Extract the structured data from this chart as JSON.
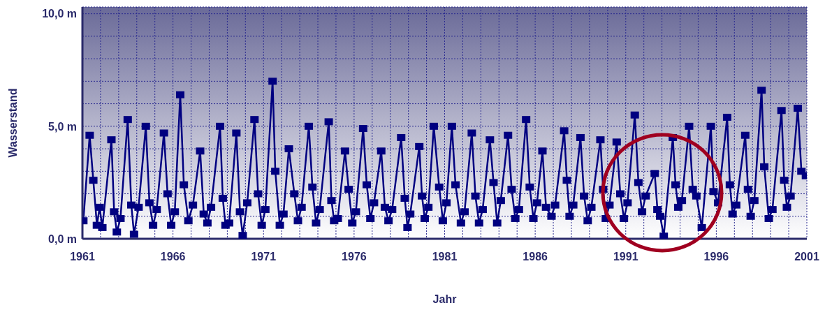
{
  "chart_data": {
    "type": "line",
    "xlabel": "Jahr",
    "ylabel": "Wasserstand",
    "marker": "square",
    "grid": true,
    "xlim": [
      1961,
      2001
    ],
    "ylim": [
      0,
      10.3
    ],
    "xticks": [
      1961,
      {
        "value": 1962,
        "label": null
      },
      {
        "value": 1963,
        "label": null
      },
      {
        "value": 1964,
        "label": null
      },
      {
        "value": 1965,
        "label": null
      },
      1966,
      {
        "value": 1967,
        "label": null
      },
      {
        "value": 1968,
        "label": null
      },
      {
        "value": 1969,
        "label": null
      },
      {
        "value": 1970,
        "label": null
      },
      1971,
      {
        "value": 1972,
        "label": null
      },
      {
        "value": 1973,
        "label": null
      },
      {
        "value": 1974,
        "label": null
      },
      {
        "value": 1975,
        "label": null
      },
      1976,
      {
        "value": 1977,
        "label": null
      },
      {
        "value": 1978,
        "label": null
      },
      {
        "value": 1979,
        "label": null
      },
      {
        "value": 1980,
        "label": null
      },
      1981,
      {
        "value": 1982,
        "label": null
      },
      {
        "value": 1983,
        "label": null
      },
      {
        "value": 1984,
        "label": null
      },
      {
        "value": 1985,
        "label": null
      },
      1986,
      {
        "value": 1987,
        "label": null
      },
      {
        "value": 1988,
        "label": null
      },
      {
        "value": 1989,
        "label": null
      },
      {
        "value": 1990,
        "label": null
      },
      1991,
      {
        "value": 1992,
        "label": null
      },
      {
        "value": 1993,
        "label": null
      },
      {
        "value": 1994,
        "label": null
      },
      {
        "value": 1995,
        "label": null
      },
      1996,
      {
        "value": 1997,
        "label": null
      },
      {
        "value": 1998,
        "label": null
      },
      {
        "value": 1999,
        "label": null
      },
      {
        "value": 2000,
        "label": null
      },
      2001
    ],
    "yticks": [
      {
        "value": 0,
        "label": "0,0 m"
      },
      {
        "value": 1,
        "label": null
      },
      {
        "value": 2,
        "label": null
      },
      {
        "value": 3,
        "label": null
      },
      {
        "value": 4,
        "label": null
      },
      {
        "value": 5,
        "label": "5,0 m"
      },
      {
        "value": 6,
        "label": null
      },
      {
        "value": 7,
        "label": null
      },
      {
        "value": 8,
        "label": null
      },
      {
        "value": 9,
        "label": null
      },
      {
        "value": 10,
        "label": "10,0 m"
      }
    ],
    "series": [
      {
        "color": "#000080",
        "x": [
          1961.05,
          1961.4,
          1961.6,
          1961.8,
          1961.95,
          1962.1,
          1962.6,
          1962.75,
          1962.9,
          1963.1,
          1963.5,
          1963.7,
          1963.85,
          1964.1,
          1964.5,
          1964.7,
          1964.9,
          1965.1,
          1965.5,
          1965.7,
          1965.9,
          1966.1,
          1966.4,
          1966.6,
          1966.85,
          1967.1,
          1967.5,
          1967.7,
          1967.9,
          1968.1,
          1968.6,
          1968.75,
          1968.9,
          1969.1,
          1969.5,
          1969.7,
          1969.85,
          1970.1,
          1970.5,
          1970.7,
          1970.9,
          1971.1,
          1971.5,
          1971.65,
          1971.9,
          1972.1,
          1972.4,
          1972.7,
          1972.9,
          1973.1,
          1973.5,
          1973.7,
          1973.9,
          1974.1,
          1974.6,
          1974.75,
          1974.9,
          1975.1,
          1975.5,
          1975.7,
          1975.9,
          1976.1,
          1976.5,
          1976.7,
          1976.9,
          1977.1,
          1977.5,
          1977.7,
          1977.9,
          1978.1,
          1978.6,
          1978.8,
          1978.95,
          1979.1,
          1979.6,
          1979.75,
          1979.9,
          1980.1,
          1980.4,
          1980.7,
          1980.9,
          1981.1,
          1981.4,
          1981.6,
          1981.9,
          1982.1,
          1982.5,
          1982.7,
          1982.9,
          1983.1,
          1983.5,
          1983.7,
          1983.9,
          1984.1,
          1984.5,
          1984.7,
          1984.9,
          1985.1,
          1985.5,
          1985.7,
          1985.9,
          1986.1,
          1986.4,
          1986.6,
          1986.9,
          1987.1,
          1987.6,
          1987.75,
          1987.9,
          1988.1,
          1988.5,
          1988.7,
          1988.9,
          1989.1,
          1989.6,
          1989.75,
          1989.9,
          1990.1,
          1990.5,
          1990.7,
          1990.9,
          1991.1,
          1991.5,
          1991.7,
          1991.9,
          1992.1,
          1992.6,
          1992.75,
          1992.9,
          1993.1,
          1993.6,
          1993.75,
          1993.9,
          1994.1,
          1994.5,
          1994.7,
          1994.9,
          1995.2,
          1995.7,
          1995.85,
          1996.1,
          1996.6,
          1996.75,
          1996.9,
          1997.1,
          1997.6,
          1997.75,
          1997.9,
          1998.1,
          1998.5,
          1998.65,
          1998.9,
          1999.1,
          1999.6,
          1999.75,
          1999.9,
          2000.1,
          2000.5,
          2000.7,
          2000.95
        ],
        "values": [
          0.8,
          4.6,
          2.6,
          0.6,
          1.4,
          0.5,
          4.4,
          1.2,
          0.3,
          0.9,
          5.3,
          1.5,
          0.2,
          1.4,
          5.0,
          1.6,
          0.6,
          1.3,
          4.7,
          2.0,
          0.6,
          1.2,
          6.4,
          2.4,
          0.8,
          1.5,
          3.9,
          1.1,
          0.7,
          1.4,
          5.0,
          1.8,
          0.6,
          0.7,
          4.7,
          1.2,
          0.15,
          1.6,
          5.3,
          2.0,
          0.6,
          1.3,
          7.0,
          3.0,
          0.6,
          1.1,
          4.0,
          2.0,
          0.8,
          1.4,
          5.0,
          2.3,
          0.7,
          1.3,
          5.2,
          1.7,
          0.8,
          0.9,
          3.9,
          2.2,
          0.7,
          1.2,
          4.9,
          2.4,
          0.9,
          1.6,
          3.9,
          1.4,
          0.8,
          1.3,
          4.5,
          1.8,
          0.5,
          1.1,
          4.1,
          1.9,
          0.9,
          1.4,
          5.0,
          2.3,
          0.8,
          1.6,
          5.0,
          2.4,
          0.7,
          1.2,
          4.7,
          1.9,
          0.7,
          1.3,
          4.4,
          2.5,
          0.7,
          1.7,
          4.6,
          2.2,
          0.9,
          1.3,
          5.3,
          2.3,
          0.9,
          1.6,
          3.9,
          1.4,
          1.0,
          1.5,
          4.8,
          2.6,
          1.0,
          1.5,
          4.5,
          1.9,
          0.8,
          1.4,
          4.4,
          2.2,
          0.9,
          1.5,
          4.3,
          2.0,
          0.9,
          1.6,
          5.5,
          2.5,
          1.2,
          1.9,
          2.9,
          1.3,
          1.0,
          0.12,
          4.5,
          2.4,
          1.4,
          1.7,
          5.0,
          2.2,
          1.9,
          0.5,
          5.0,
          2.1,
          1.6,
          5.4,
          2.4,
          1.1,
          1.5,
          4.6,
          2.2,
          1.0,
          1.7,
          6.6,
          3.2,
          0.9,
          1.3,
          5.7,
          2.6,
          1.4,
          1.9,
          5.8,
          3.0,
          2.8
        ]
      }
    ]
  }
}
